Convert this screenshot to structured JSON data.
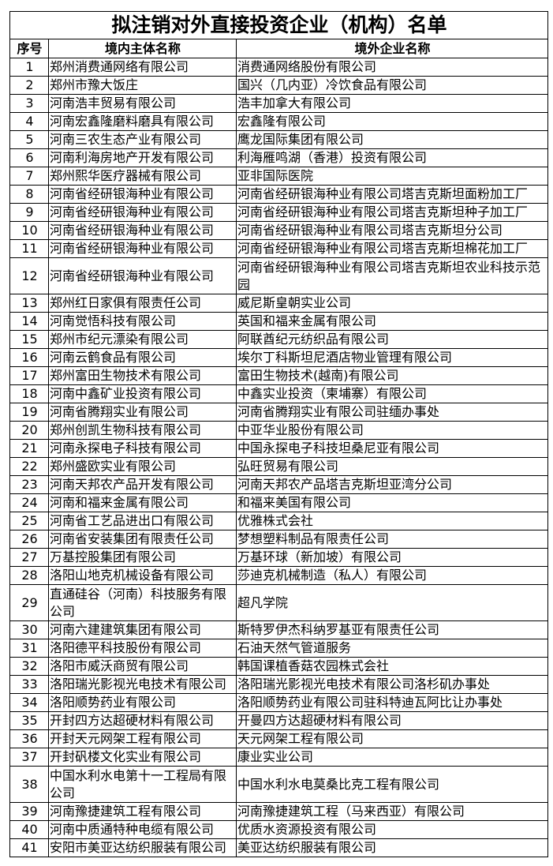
{
  "title": "拟注销对外直接投资企业（机构）名单",
  "headers": {
    "seq": "序号",
    "domestic": "境内主体名称",
    "foreign": "境外企业名称"
  },
  "rows": [
    {
      "seq": "1",
      "domestic": "郑州消费通网络有限公司",
      "foreign": "消费通网络股份有限公司"
    },
    {
      "seq": "2",
      "domestic": "郑州市豫大饭庄",
      "foreign": "国兴（几内亚）冷饮食品有限公司"
    },
    {
      "seq": "3",
      "domestic": "河南浩丰贸易有限公司",
      "foreign": "浩丰加拿大有限公司"
    },
    {
      "seq": "4",
      "domestic": "河南宏鑫隆磨料磨具有限公司",
      "foreign": "宏鑫隆有限公司"
    },
    {
      "seq": "5",
      "domestic": "河南三农生态产业有限公司",
      "foreign": "鹰龙国际集团有限公司"
    },
    {
      "seq": "6",
      "domestic": "河南利海房地产开发有限公司",
      "foreign": "利海雁鸣湖（香港）投资有限公司"
    },
    {
      "seq": "7",
      "domestic": "郑州熙华医疗器械有限公司",
      "foreign": "亚非国际医院"
    },
    {
      "seq": "8",
      "domestic": "河南省经研银海种业有限公司",
      "foreign": "河南省经研银海种业有限公司塔吉克斯坦面粉加工厂"
    },
    {
      "seq": "9",
      "domestic": "河南省经研银海种业有限公司",
      "foreign": "河南省经研银海种业有限公司塔吉克斯坦种子加工厂"
    },
    {
      "seq": "10",
      "domestic": "河南省经研银海种业有限公司",
      "foreign": "河南省经研银海种业有限公司塔吉克斯坦分公司"
    },
    {
      "seq": "11",
      "domestic": "河南省经研银海种业有限公司",
      "foreign": "河南省经研银海种业有限公司塔吉克斯坦棉花加工厂"
    },
    {
      "seq": "12",
      "domestic": "河南省经研银海种业有限公司",
      "foreign": "河南省经研银海种业有限公司塔吉克斯坦农业科技示范园"
    },
    {
      "seq": "13",
      "domestic": "郑州红日家俱有限责任公司",
      "foreign": "威尼斯皇朝实业公司"
    },
    {
      "seq": "14",
      "domestic": "河南觉悟科技有限公司",
      "foreign": "英国和福来金属有限公司"
    },
    {
      "seq": "15",
      "domestic": "郑州市纪元漂染有限公司",
      "foreign": "阿联酋纪元纺织品有限公司"
    },
    {
      "seq": "16",
      "domestic": "河南云鹤食品有限公司",
      "foreign": "埃尔丁科斯坦尼酒店物业管理有限公司"
    },
    {
      "seq": "17",
      "domestic": "郑州富田生物技术有限公司",
      "foreign": "富田生物技术(越南)有限公司"
    },
    {
      "seq": "18",
      "domestic": "河南中鑫矿业投资有限公司",
      "foreign": "中鑫实业投资（柬埔寨）有限公司"
    },
    {
      "seq": "19",
      "domestic": "河南省腾翔实业有限公司",
      "foreign": "河南省腾翔实业有限公司驻缅办事处"
    },
    {
      "seq": "20",
      "domestic": "郑州创凯生物科技有限公司",
      "foreign": "中亚华业股份有限公司"
    },
    {
      "seq": "21",
      "domestic": "河南永探电子科技有限公司",
      "foreign": "中国永探电子科技坦桑尼亚有限公司"
    },
    {
      "seq": "22",
      "domestic": "郑州盛欧实业有限公司",
      "foreign": "弘旺贸易有限公司"
    },
    {
      "seq": "23",
      "domestic": "河南天邦农产品开发有限公司",
      "foreign": "河南天邦农产品塔吉克斯坦亚湾分公司"
    },
    {
      "seq": "24",
      "domestic": "河南和福来金属有限公司",
      "foreign": "和福来美国有限公司"
    },
    {
      "seq": "25",
      "domestic": "河南省工艺品进出口有限公司",
      "foreign": "优雅株式会社"
    },
    {
      "seq": "26",
      "domestic": "河南省安装集团有限责任公司",
      "foreign": "梦想塑料制品有限责任公司"
    },
    {
      "seq": "27",
      "domestic": "万基控股集团有限公司",
      "foreign": "万基环球（新加坡）有限公司"
    },
    {
      "seq": "28",
      "domestic": "洛阳山地克机械设备有限公司",
      "foreign": "莎迪克机械制造（私人）有限公司"
    },
    {
      "seq": "29",
      "domestic": "直通硅谷（河南）科技服务有限公司",
      "foreign": "超凡学院"
    },
    {
      "seq": "30",
      "domestic": "河南六建建筑集团有限公司",
      "foreign": "斯特罗伊杰科纳罗基亚有限责任公司"
    },
    {
      "seq": "31",
      "domestic": "洛阳德平科技股份有限公司",
      "foreign": "石油天然气管道服务"
    },
    {
      "seq": "32",
      "domestic": "洛阳市威沃商贸有限公司",
      "foreign": "韩国课植香菇农园株式会社"
    },
    {
      "seq": "33",
      "domestic": "洛阳瑞光影视光电技术有限公司",
      "foreign": "洛阳瑞光影视光电技术有限公司洛杉矶办事处"
    },
    {
      "seq": "34",
      "domestic": "洛阳顺势药业有限公司",
      "foreign": "洛阳顺势药业有限公司驻科特迪瓦阿比让办事处"
    },
    {
      "seq": "35",
      "domestic": "开封四方达超硬材料有限公司",
      "foreign": "开曼四方达超硬材料有限公司"
    },
    {
      "seq": "36",
      "domestic": "开封天元网架工程有限公司",
      "foreign": "天元网架工程有限公司"
    },
    {
      "seq": "37",
      "domestic": "开封矾楼文化实业有限公司",
      "foreign": "康业实业公司"
    },
    {
      "seq": "38",
      "domestic": "中国水利水电第十一工程局有限公司",
      "foreign": "中国水利水电莫桑比克工程有限公司"
    },
    {
      "seq": "39",
      "domestic": "河南豫捷建筑工程有限公司",
      "foreign": "河南豫捷建筑工程（马来西亚）有限公司"
    },
    {
      "seq": "40",
      "domestic": "河南中质通特种电缆有限公司",
      "foreign": "优质水资源投资有限公司"
    },
    {
      "seq": "41",
      "domestic": "安阳市美亚达纺织服装有限公司",
      "foreign": "美亚达纺织服装有限公司"
    }
  ]
}
